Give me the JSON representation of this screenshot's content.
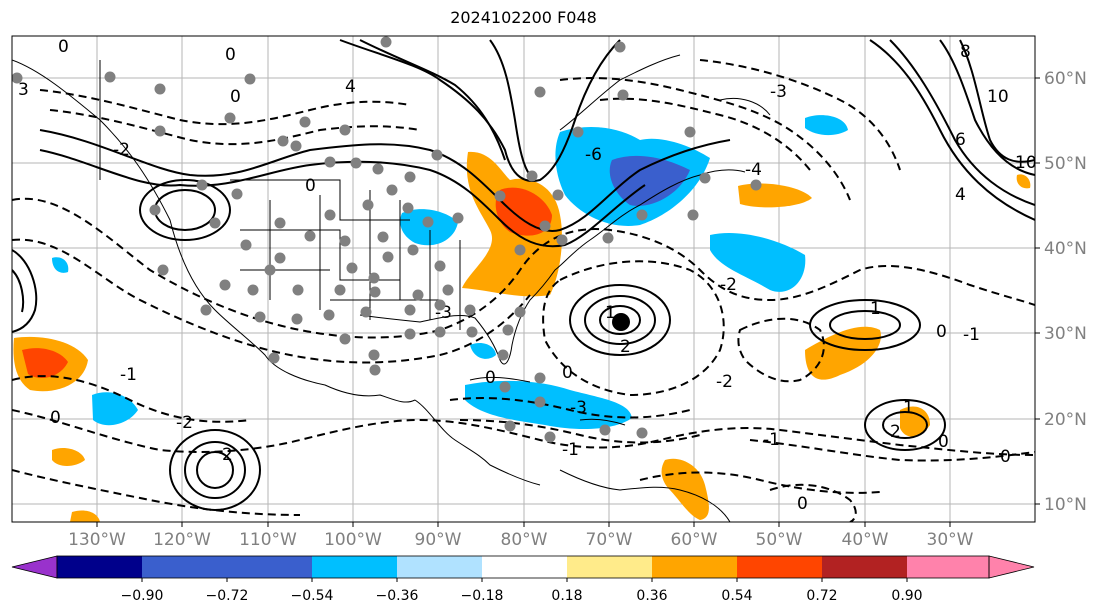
{
  "title": "2024102200 F048",
  "lon_labels": [
    "130°W",
    "120°W",
    "110°W",
    "100°W",
    "90°W",
    "80°W",
    "70°W",
    "60°W",
    "50°W",
    "40°W",
    "30°W"
  ],
  "lat_labels": [
    "60°N",
    "50°N",
    "40°N",
    "30°N",
    "20°N",
    "10°N"
  ],
  "colorbar": {
    "tick_labels": [
      "−0.90",
      "−0.72",
      "−0.54",
      "−0.36",
      "−0.18",
      "0.18",
      "0.36",
      "0.54",
      "0.72",
      "0.90"
    ],
    "colors": [
      "#9932cc",
      "#00008b",
      "#3a5fcd",
      "#00bfff",
      "#b0e2ff",
      "#ffffff",
      "#ffeb8a",
      "#ffa500",
      "#ff4500",
      "#b22222",
      "#ff82ab"
    ]
  },
  "contour_labels": [
    "0",
    "0",
    "0",
    "0",
    "0",
    "0",
    "0",
    "0",
    "0",
    "0",
    "0",
    "-1",
    "-1",
    "-1",
    "-1",
    "1",
    "1",
    "1",
    "2",
    "2",
    "2",
    "-2",
    "-2",
    "-2",
    "-2",
    "-3",
    "-3",
    "-3",
    "3",
    "4",
    "4",
    "-4",
    "6",
    "8",
    "10",
    "10",
    "-6"
  ]
}
